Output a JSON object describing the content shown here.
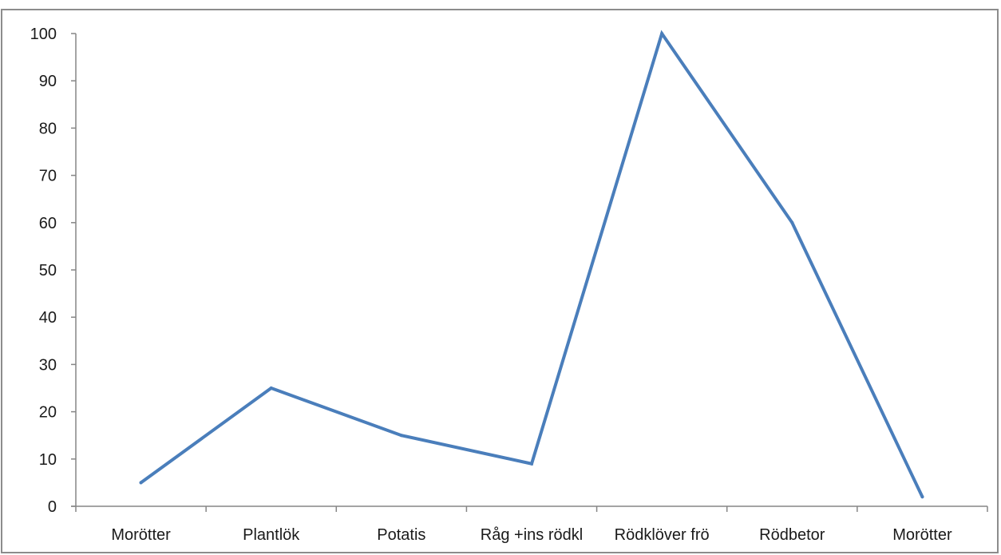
{
  "chart_data": {
    "type": "line",
    "categories": [
      "Morötter",
      "Plantlök",
      "Potatis",
      "Råg +ins rödkl",
      "Rödklöver frö",
      "Rödbetor",
      "Morötter"
    ],
    "series": [
      {
        "values": [
          5,
          25,
          15,
          9,
          100,
          60,
          2
        ],
        "color": "#4a7ebb"
      }
    ],
    "ylim": [
      0,
      100
    ],
    "yticks": [
      0,
      10,
      20,
      30,
      40,
      50,
      60,
      70,
      80,
      90,
      100
    ],
    "title": "",
    "xlabel": "",
    "ylabel": "",
    "grid": false,
    "legend": "none"
  }
}
